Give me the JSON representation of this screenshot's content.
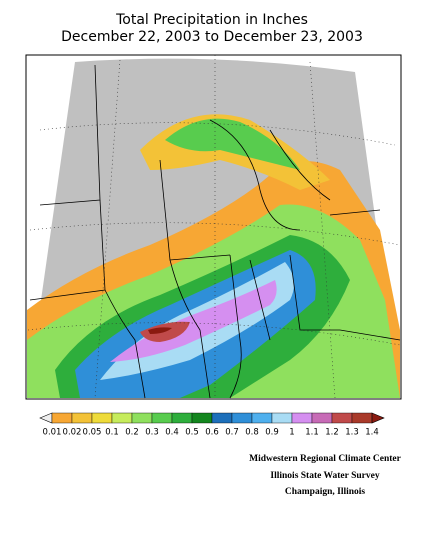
{
  "title": "Total Precipitation in Inches",
  "subtitle": "December 22, 2003 to December 23, 2003",
  "legend": {
    "labels": [
      0.01,
      0.02,
      0.05,
      0.1,
      0.2,
      0.3,
      0.4,
      0.5,
      0.6,
      0.7,
      0.8,
      0.9,
      1,
      1.1,
      1.2,
      1.3,
      1.4
    ],
    "colors": [
      "#f7a734",
      "#f3c237",
      "#eedb3a",
      "#c6ec5c",
      "#8fe05e",
      "#58cc4e",
      "#2eae3c",
      "#13861e",
      "#1d6fba",
      "#2f8fd8",
      "#4fb0ee",
      "#a9dcf4",
      "#d58ff0",
      "#c76bb6",
      "#c04a4a",
      "#a93a2a"
    ],
    "under_color": "#eeeeee",
    "over_color": "#8a1a10"
  },
  "credits": [
    "Midwestern Regional Climate Center",
    "Illinois State Water Survey",
    "Champaign, Illinois"
  ]
}
